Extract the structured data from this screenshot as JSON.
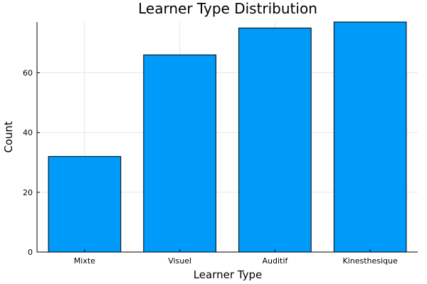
{
  "chart_data": {
    "type": "bar",
    "title": "Learner Type Distribution",
    "xlabel": "Learner Type",
    "ylabel": "Count",
    "categories": [
      "Mixte",
      "Visuel",
      "Auditif",
      "Kinesthesique"
    ],
    "values": [
      32,
      66,
      75,
      77
    ],
    "ylim": [
      0,
      77
    ],
    "yticks": [
      0,
      20,
      40,
      60
    ],
    "grid": true,
    "bar_color": "#009af9",
    "legend": "none"
  }
}
